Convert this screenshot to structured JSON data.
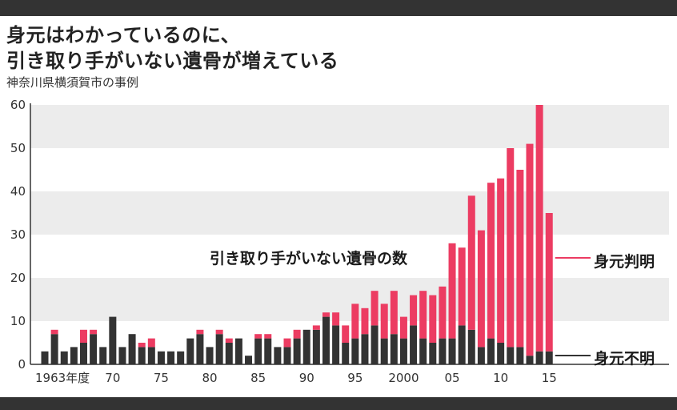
{
  "title_line1": "身元はわかっているのに、",
  "title_line2": "引き取り手がいない遺骨が増えている",
  "subtitle": "神奈川県横須賀市の事例",
  "colors": {
    "known": "#ec3c62",
    "unknown": "#333333",
    "band": "#ececec",
    "frame": "#333333"
  },
  "chart_data": {
    "type": "bar",
    "stacked": true,
    "annotation": "引き取り手がいない遺骨の数",
    "ylim": [
      0,
      60
    ],
    "yticks": [
      0,
      10,
      20,
      30,
      40,
      50,
      60
    ],
    "grid": "alternating horizontal bands",
    "x_tick_labels": [
      {
        "text": "1963年度",
        "year": 1963
      },
      {
        "text": "70",
        "year": 1970
      },
      {
        "text": "75",
        "year": 1975
      },
      {
        "text": "80",
        "year": 1980
      },
      {
        "text": "85",
        "year": 1985
      },
      {
        "text": "90",
        "year": 1990
      },
      {
        "text": "95",
        "year": 1995
      },
      {
        "text": "2000",
        "year": 2000
      },
      {
        "text": "05",
        "year": 2005
      },
      {
        "text": "10",
        "year": 2010
      },
      {
        "text": "15",
        "year": 2015
      }
    ],
    "years": [
      1963,
      1964,
      1965,
      1966,
      1967,
      1968,
      1969,
      1970,
      1971,
      1972,
      1973,
      1974,
      1975,
      1976,
      1977,
      1978,
      1979,
      1980,
      1981,
      1982,
      1983,
      1984,
      1985,
      1986,
      1987,
      1988,
      1989,
      1990,
      1991,
      1992,
      1993,
      1994,
      1995,
      1996,
      1997,
      1998,
      1999,
      2000,
      2001,
      2002,
      2003,
      2004,
      2005,
      2006,
      2007,
      2008,
      2009,
      2010,
      2011,
      2012,
      2013,
      2014,
      2015
    ],
    "series": [
      {
        "name": "身元不明",
        "values": [
          3,
          7,
          3,
          4,
          5,
          7,
          4,
          11,
          4,
          7,
          4,
          4,
          3,
          3,
          3,
          6,
          7,
          4,
          7,
          5,
          6,
          2,
          6,
          6,
          4,
          4,
          6,
          8,
          8,
          11,
          9,
          5,
          6,
          7,
          9,
          6,
          7,
          6,
          9,
          6,
          5,
          6,
          6,
          9,
          8,
          4,
          6,
          5,
          4,
          4,
          2,
          3,
          3
        ]
      },
      {
        "name": "身元判明",
        "values": [
          0,
          1,
          0,
          0,
          3,
          1,
          0,
          0,
          0,
          0,
          1,
          2,
          0,
          0,
          0,
          0,
          1,
          0,
          1,
          1,
          0,
          0,
          1,
          1,
          0,
          2,
          2,
          0,
          1,
          1,
          3,
          4,
          8,
          6,
          8,
          8,
          10,
          5,
          7,
          11,
          11,
          12,
          22,
          18,
          31,
          27,
          36,
          38,
          46,
          41,
          49,
          57,
          32
        ]
      }
    ]
  }
}
